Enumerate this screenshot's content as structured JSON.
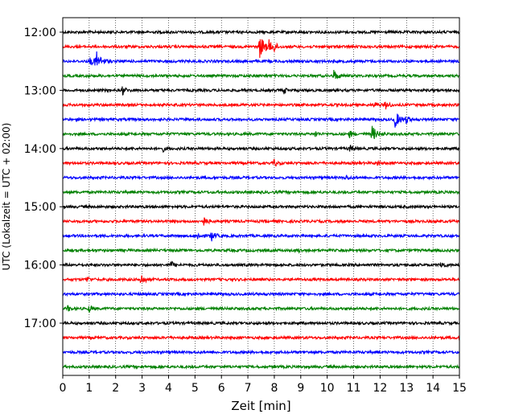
{
  "chart_data": {
    "type": "line",
    "title": "",
    "xlabel": "Zeit  [min]",
    "ylabel": "UTC (Lokalzeit = UTC + 02:00)",
    "xlim": [
      0,
      15
    ],
    "x_ticks": [
      "0",
      "1",
      "2",
      "3",
      "4",
      "5",
      "6",
      "7",
      "8",
      "9",
      "10",
      "11",
      "12",
      "13",
      "14",
      "15"
    ],
    "y_tick_labels": [
      "12:00",
      "13:00",
      "14:00",
      "15:00",
      "16:00",
      "17:00"
    ],
    "grid": "vertical dotted at each minute",
    "line_colors": [
      "#000000",
      "#ff0000",
      "#0000ff",
      "#008000"
    ],
    "traces": [
      {
        "start": "12:00",
        "color": "#000000",
        "events": []
      },
      {
        "start": "12:15",
        "color": "#ff0000",
        "events": [
          {
            "t": 7.45,
            "amp": 1.0
          },
          {
            "t": 7.8,
            "amp": 0.4
          },
          {
            "t": 8.0,
            "amp": 0.3
          }
        ]
      },
      {
        "start": "12:30",
        "color": "#0000ff",
        "events": [
          {
            "t": 1.25,
            "amp": 0.9
          },
          {
            "t": 1.05,
            "amp": 0.4
          }
        ]
      },
      {
        "start": "12:45",
        "color": "#008000",
        "events": [
          {
            "t": 10.25,
            "amp": 0.5
          }
        ]
      },
      {
        "start": "13:00",
        "color": "#000000",
        "events": [
          {
            "t": 2.25,
            "amp": 0.4
          },
          {
            "t": 8.35,
            "amp": 0.3
          }
        ]
      },
      {
        "start": "13:15",
        "color": "#ff0000",
        "events": [
          {
            "t": 12.2,
            "amp": 0.4
          },
          {
            "t": 11.8,
            "amp": 0.25
          }
        ]
      },
      {
        "start": "13:30",
        "color": "#0000ff",
        "events": [
          {
            "t": 12.55,
            "amp": 0.8
          },
          {
            "t": 13.0,
            "amp": 0.3
          }
        ]
      },
      {
        "start": "13:45",
        "color": "#008000",
        "events": [
          {
            "t": 11.7,
            "amp": 0.7
          },
          {
            "t": 10.85,
            "amp": 0.3
          },
          {
            "t": 9.55,
            "amp": 0.25
          }
        ]
      },
      {
        "start": "14:00",
        "color": "#000000",
        "events": [
          {
            "t": 10.85,
            "amp": 0.3
          },
          {
            "t": 3.8,
            "amp": 0.2
          }
        ]
      },
      {
        "start": "14:15",
        "color": "#ff0000",
        "events": [
          {
            "t": 8.0,
            "amp": 0.3
          },
          {
            "t": 11.9,
            "amp": 0.2
          }
        ]
      },
      {
        "start": "14:30",
        "color": "#0000ff",
        "events": [
          {
            "t": 10.7,
            "amp": 0.25
          }
        ]
      },
      {
        "start": "14:45",
        "color": "#008000",
        "events": []
      },
      {
        "start": "15:00",
        "color": "#000000",
        "events": []
      },
      {
        "start": "15:15",
        "color": "#ff0000",
        "events": [
          {
            "t": 5.3,
            "amp": 0.45
          }
        ]
      },
      {
        "start": "15:30",
        "color": "#0000ff",
        "events": [
          {
            "t": 5.6,
            "amp": 0.5
          },
          {
            "t": 5.1,
            "amp": 0.3
          }
        ]
      },
      {
        "start": "15:45",
        "color": "#008000",
        "events": [
          {
            "t": 8.9,
            "amp": 0.2
          }
        ]
      },
      {
        "start": "16:00",
        "color": "#000000",
        "events": [
          {
            "t": 4.1,
            "amp": 0.3
          },
          {
            "t": 14.3,
            "amp": 0.35
          }
        ]
      },
      {
        "start": "16:15",
        "color": "#ff0000",
        "events": [
          {
            "t": 2.95,
            "amp": 0.55
          },
          {
            "t": 0.9,
            "amp": 0.3
          }
        ]
      },
      {
        "start": "16:30",
        "color": "#0000ff",
        "events": []
      },
      {
        "start": "16:45",
        "color": "#008000",
        "events": [
          {
            "t": 1.0,
            "amp": 0.3
          },
          {
            "t": 0.2,
            "amp": 0.25
          }
        ]
      },
      {
        "start": "17:00",
        "color": "#000000",
        "events": []
      },
      {
        "start": "17:15",
        "color": "#ff0000",
        "events": []
      },
      {
        "start": "17:30",
        "color": "#0000ff",
        "events": []
      },
      {
        "start": "17:45",
        "color": "#008000",
        "events": []
      }
    ]
  }
}
